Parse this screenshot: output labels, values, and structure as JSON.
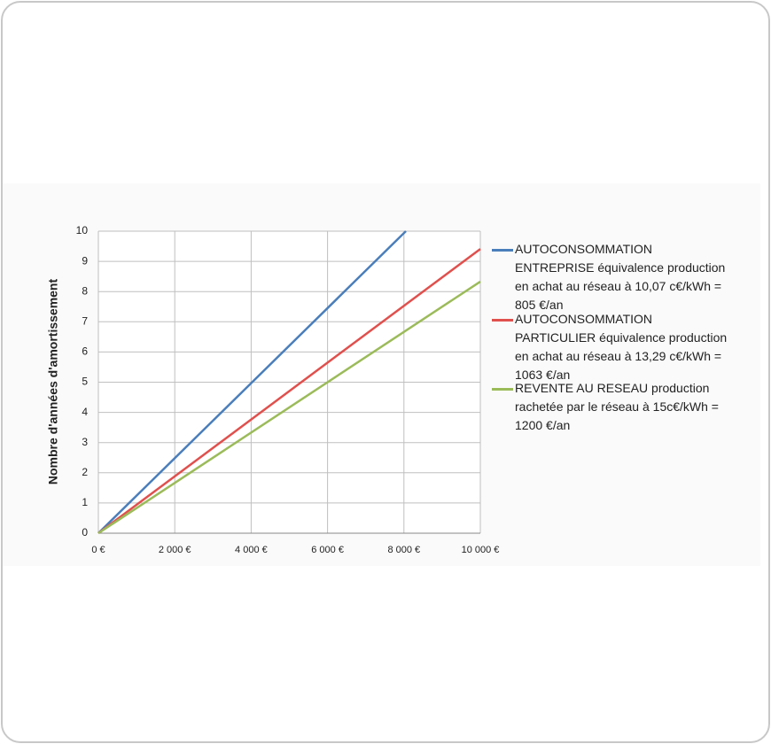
{
  "chart_data": {
    "type": "line",
    "y_label": "Nombre d'années d'amortissement",
    "xlim": [
      0,
      10000
    ],
    "ylim": [
      0,
      10
    ],
    "xticks": [
      {
        "value": 0,
        "label": "0 €"
      },
      {
        "value": 2000,
        "label": "2 000 €"
      },
      {
        "value": 4000,
        "label": "4 000 €"
      },
      {
        "value": 6000,
        "label": "6 000 €"
      },
      {
        "value": 8000,
        "label": "8 000 €"
      },
      {
        "value": 10000,
        "label": "10 000 €"
      }
    ],
    "yticks": [
      0,
      1,
      2,
      3,
      4,
      5,
      6,
      7,
      8,
      9,
      10
    ],
    "grid": true,
    "legend": "right",
    "series": [
      {
        "name": "AUTOCONSOMMATION ENTREPRISE équivalence production en achat au réseau à 10,07 c€/kWh = 805 €/an",
        "color": "#4a7ebb",
        "x": [
          0,
          8050
        ],
        "values": [
          0,
          10
        ]
      },
      {
        "name": "AUTOCONSOMMATION PARTICULIER équivalence production en achat au réseau à 13,29 c€/kWh = 1063 €/an",
        "color": "#e0504d",
        "x": [
          0,
          10000
        ],
        "values": [
          0,
          9.41
        ]
      },
      {
        "name": "REVENTE AU RESEAU production rachetée par le réseau à 15c€/kWh = 1200 €/an",
        "color": "#9bbb59",
        "x": [
          0,
          10000
        ],
        "values": [
          0,
          8.33
        ]
      }
    ]
  }
}
